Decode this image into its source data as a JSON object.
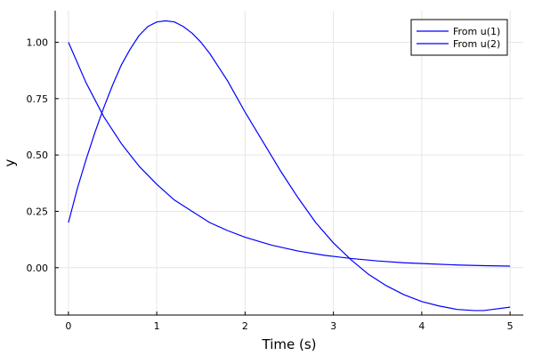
{
  "chart_data": {
    "type": "line",
    "xlabel": "Time (s)",
    "ylabel": "y",
    "xlim": [
      -0.15,
      5.15
    ],
    "ylim": [
      -0.21,
      1.14
    ],
    "xticks": [
      0,
      1,
      2,
      3,
      4,
      5
    ],
    "xtick_labels": [
      "0",
      "1",
      "2",
      "3",
      "4",
      "5"
    ],
    "yticks": [
      0.0,
      0.25,
      0.5,
      0.75,
      1.0
    ],
    "ytick_labels": [
      "0.00",
      "0.25",
      "0.50",
      "0.75",
      "1.00"
    ],
    "grid": true,
    "legend_position": "top-right",
    "series": [
      {
        "name": "From u(1)",
        "color": "#0000ff",
        "x": [
          0,
          0.1,
          0.2,
          0.3,
          0.4,
          0.5,
          0.6,
          0.7,
          0.8,
          0.9,
          1.0,
          1.1,
          1.2,
          1.3,
          1.4,
          1.5,
          1.6,
          1.7,
          1.8,
          1.9,
          2.0,
          2.2,
          2.4,
          2.6,
          2.8,
          3.0,
          3.2,
          3.4,
          3.6,
          3.8,
          4.0,
          4.2,
          4.4,
          4.6,
          4.7,
          4.8,
          5.0
        ],
        "y": [
          0.2,
          0.35,
          0.48,
          0.6,
          0.71,
          0.81,
          0.9,
          0.97,
          1.03,
          1.07,
          1.09,
          1.095,
          1.09,
          1.07,
          1.04,
          1.0,
          0.95,
          0.89,
          0.83,
          0.76,
          0.69,
          0.56,
          0.43,
          0.31,
          0.2,
          0.11,
          0.035,
          -0.03,
          -0.08,
          -0.12,
          -0.15,
          -0.17,
          -0.185,
          -0.19,
          -0.19,
          -0.185,
          -0.175
        ]
      },
      {
        "name": "From u(2)",
        "color": "#0000ff",
        "x": [
          0,
          0.2,
          0.4,
          0.6,
          0.8,
          1.0,
          1.2,
          1.4,
          1.6,
          1.8,
          2.0,
          2.3,
          2.6,
          2.9,
          3.2,
          3.5,
          3.8,
          4.1,
          4.4,
          4.7,
          5.0
        ],
        "y": [
          1.0,
          0.82,
          0.67,
          0.55,
          0.45,
          0.37,
          0.3,
          0.25,
          0.2,
          0.165,
          0.135,
          0.1,
          0.074,
          0.055,
          0.041,
          0.03,
          0.022,
          0.017,
          0.012,
          0.009,
          0.007
        ]
      }
    ]
  }
}
